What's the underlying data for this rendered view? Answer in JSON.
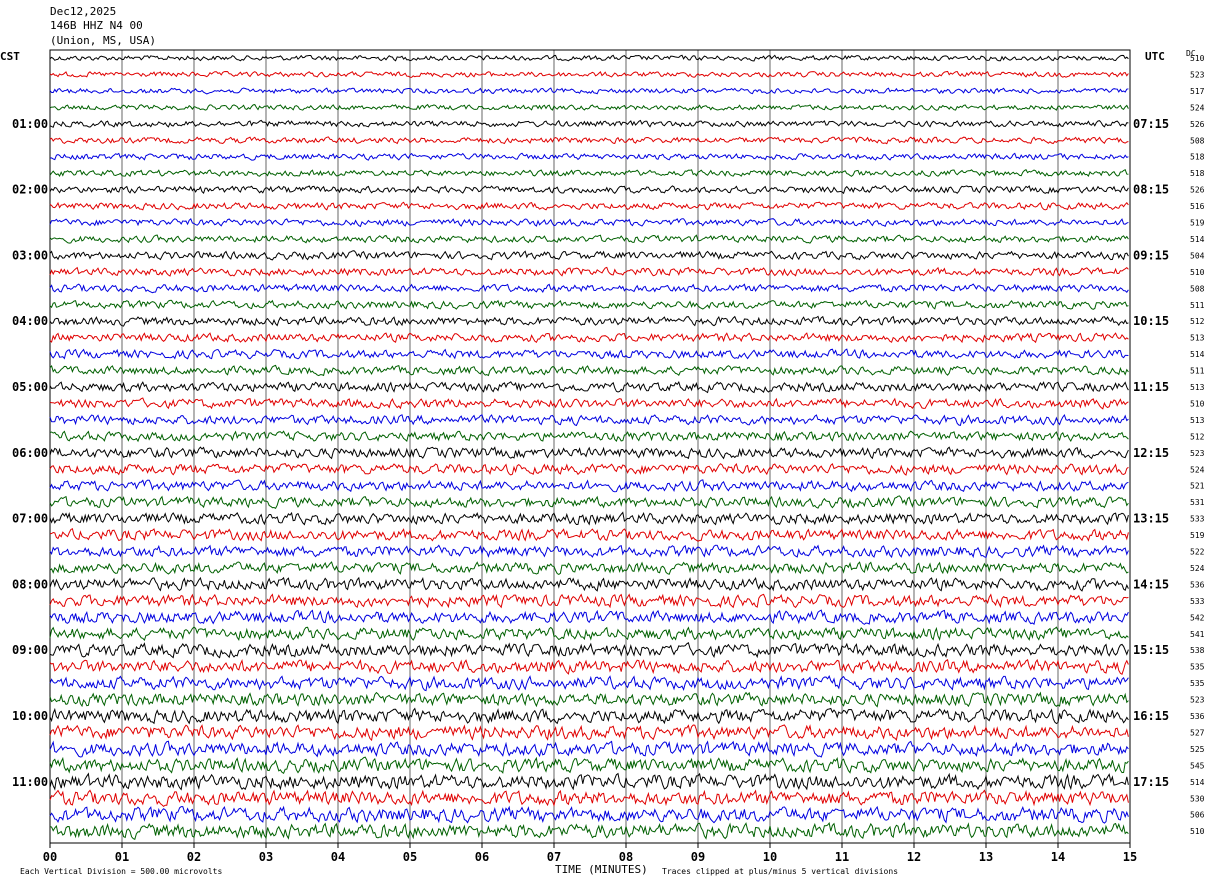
{
  "header": {
    "date": "Dec12,2025",
    "station": "146B HHZ N4 00",
    "location": "(Union, MS, USA)"
  },
  "labels": {
    "left_zone": "CST",
    "right_zone": "UTC",
    "dc": "DC"
  },
  "footer": {
    "vertical_division": "Each Vertical Division =  500.00 microvolts",
    "xlabel": "TIME (MINUTES)",
    "clip_note": "Traces clipped at plus/minus 5 vertical divisions"
  },
  "colors": {
    "cycle": [
      "#000000",
      "#e00000",
      "#0000e0",
      "#006000"
    ],
    "grid": "#000000"
  },
  "chart_data": {
    "type": "line",
    "title": "146B HHZ N4 00",
    "xlabel": "TIME (MINUTES)",
    "xlim": [
      0,
      15
    ],
    "x_ticks": [
      "00",
      "01",
      "02",
      "03",
      "04",
      "05",
      "06",
      "07",
      "08",
      "09",
      "10",
      "11",
      "12",
      "13",
      "14",
      "15"
    ],
    "rows": 48,
    "traces_per_hour": 4,
    "left_hour_labels": [
      "01:00",
      "02:00",
      "03:00",
      "04:00",
      "05:00",
      "06:00",
      "07:00",
      "08:00",
      "09:00",
      "10:00",
      "11:00"
    ],
    "right_hour_labels": [
      "07:15",
      "08:15",
      "09:15",
      "10:15",
      "11:15",
      "12:15",
      "13:15",
      "14:15",
      "15:15",
      "16:15",
      "17:15"
    ],
    "dc_offsets": [
      510,
      523,
      517,
      524,
      526,
      508,
      518,
      518,
      526,
      516,
      519,
      514,
      504,
      510,
      508,
      511,
      512,
      513,
      514,
      511,
      513,
      510,
      513,
      512,
      523,
      524,
      521,
      531,
      533,
      519,
      522,
      524,
      536,
      533,
      542,
      541,
      538,
      535,
      535,
      523,
      536,
      527,
      525,
      545,
      514,
      530,
      506,
      510
    ]
  }
}
